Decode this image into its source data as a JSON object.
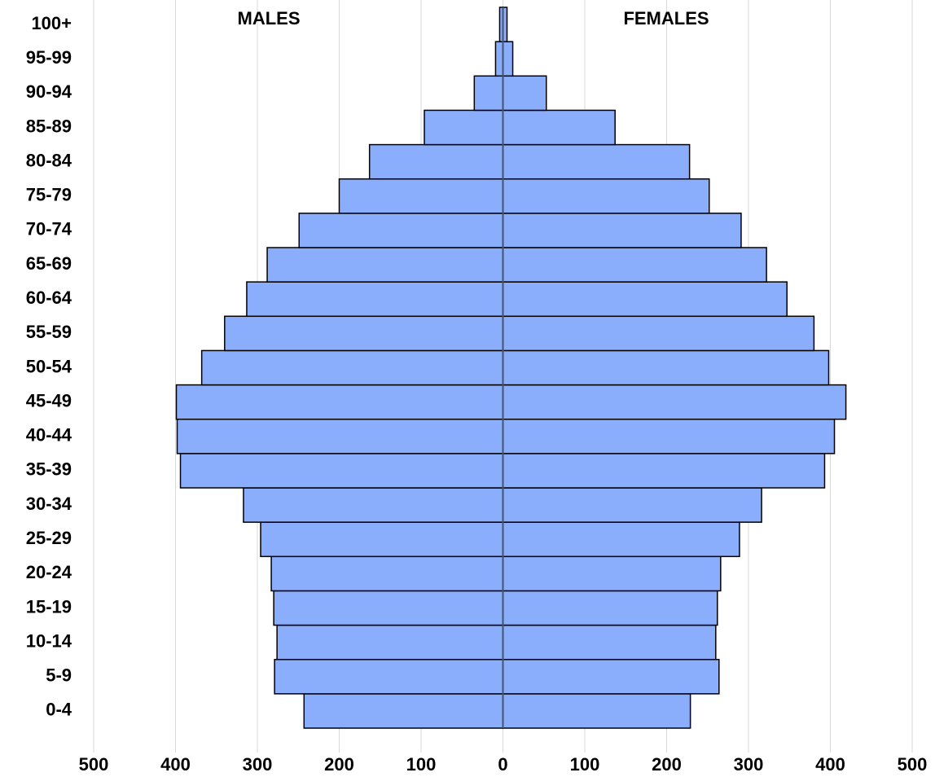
{
  "chart_data": {
    "type": "pyramid",
    "categories": [
      "0-4",
      "5-9",
      "10-14",
      "15-19",
      "20-24",
      "25-29",
      "30-34",
      "35-39",
      "40-44",
      "45-49",
      "50-54",
      "55-59",
      "60-64",
      "65-69",
      "70-74",
      "75-79",
      "80-84",
      "85-89",
      "90-94",
      "95-99",
      "100+"
    ],
    "series": [
      {
        "name": "MALES",
        "color": "#8aaefc",
        "values": [
          -243,
          -279,
          -276,
          -280,
          -283,
          -296,
          -317,
          -394,
          -398,
          -399,
          -368,
          -340,
          -313,
          -288,
          -249,
          -200,
          -163,
          -96,
          -35,
          -9,
          -4
        ]
      },
      {
        "name": "FEMALES",
        "color": "#8aaefc",
        "values": [
          229,
          264,
          260,
          262,
          266,
          289,
          316,
          393,
          405,
          419,
          398,
          380,
          347,
          322,
          291,
          252,
          228,
          137,
          53,
          12,
          5
        ]
      }
    ],
    "xlim": [
      -500,
      500
    ],
    "xticks": [
      {
        "value": -500,
        "label": "500"
      },
      {
        "value": -400,
        "label": "400"
      },
      {
        "value": -300,
        "label": "300"
      },
      {
        "value": -200,
        "label": "200"
      },
      {
        "value": -100,
        "label": "100"
      },
      0,
      100,
      200,
      300,
      400,
      500
    ],
    "grid": true
  }
}
